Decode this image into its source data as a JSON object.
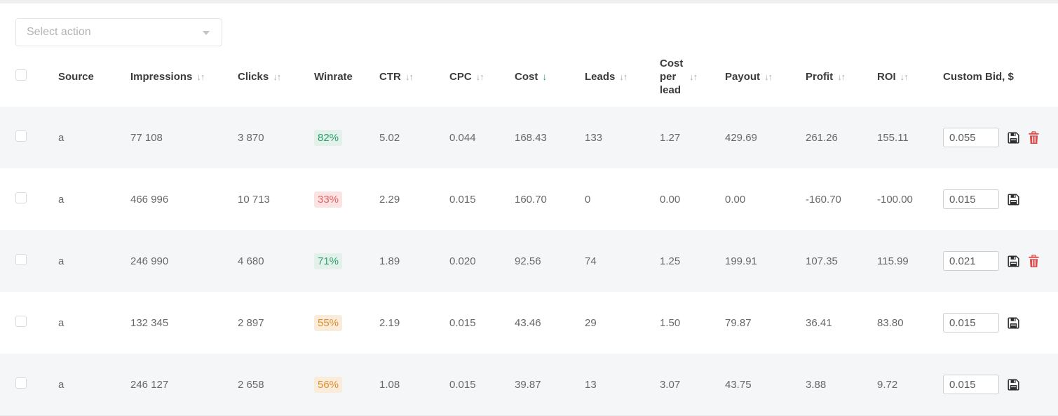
{
  "action_bar": {
    "select_action_placeholder": "Select action"
  },
  "table": {
    "select_all_checked": false,
    "columns": [
      {
        "id": "source",
        "label": "Source",
        "sort": "none"
      },
      {
        "id": "impressions",
        "label": "Impressions",
        "sort": "both"
      },
      {
        "id": "clicks",
        "label": "Clicks",
        "sort": "both"
      },
      {
        "id": "winrate",
        "label": "Winrate",
        "sort": "none"
      },
      {
        "id": "ctr",
        "label": "CTR",
        "sort": "both"
      },
      {
        "id": "cpc",
        "label": "CPC",
        "sort": "both"
      },
      {
        "id": "cost",
        "label": "Cost",
        "sort": "desc"
      },
      {
        "id": "leads",
        "label": "Leads",
        "sort": "both"
      },
      {
        "id": "cost_per_lead",
        "label": "Cost per lead",
        "sort": "both",
        "wrap": true
      },
      {
        "id": "payout",
        "label": "Payout",
        "sort": "both"
      },
      {
        "id": "profit",
        "label": "Profit",
        "sort": "both"
      },
      {
        "id": "roi",
        "label": "ROI",
        "sort": "both"
      },
      {
        "id": "custom_bid",
        "label": "Custom Bid, $",
        "sort": "none"
      }
    ],
    "rows": [
      {
        "checked": false,
        "source": "a",
        "impressions": "77 108",
        "clicks": "3 870",
        "winrate": "82%",
        "winrate_color": "green",
        "ctr": "5.02",
        "cpc": "0.044",
        "cost": "168.43",
        "leads": "133",
        "cost_per_lead": "1.27",
        "payout": "429.69",
        "profit": "261.26",
        "roi": "155.11",
        "custom_bid_value": "0.055",
        "can_delete": true
      },
      {
        "checked": false,
        "source": "a",
        "impressions": "466 996",
        "clicks": "10 713",
        "winrate": "33%",
        "winrate_color": "red",
        "ctr": "2.29",
        "cpc": "0.015",
        "cost": "160.70",
        "leads": "0",
        "cost_per_lead": "0.00",
        "payout": "0.00",
        "profit": "-160.70",
        "roi": "-100.00",
        "custom_bid_value": "0.015",
        "can_delete": false
      },
      {
        "checked": false,
        "source": "a",
        "impressions": "246 990",
        "clicks": "4 680",
        "winrate": "71%",
        "winrate_color": "green",
        "ctr": "1.89",
        "cpc": "0.020",
        "cost": "92.56",
        "leads": "74",
        "cost_per_lead": "1.25",
        "payout": "199.91",
        "profit": "107.35",
        "roi": "115.99",
        "custom_bid_value": "0.021",
        "can_delete": true
      },
      {
        "checked": false,
        "source": "a",
        "impressions": "132 345",
        "clicks": "2 897",
        "winrate": "55%",
        "winrate_color": "orange",
        "ctr": "2.19",
        "cpc": "0.015",
        "cost": "43.46",
        "leads": "29",
        "cost_per_lead": "1.50",
        "payout": "79.87",
        "profit": "36.41",
        "roi": "83.80",
        "custom_bid_value": "0.015",
        "can_delete": false
      },
      {
        "checked": false,
        "source": "a",
        "impressions": "246 127",
        "clicks": "2 658",
        "winrate": "56%",
        "winrate_color": "orange",
        "ctr": "1.08",
        "cpc": "0.015",
        "cost": "39.87",
        "leads": "13",
        "cost_per_lead": "3.07",
        "payout": "43.75",
        "profit": "3.88",
        "roi": "9.72",
        "custom_bid_value": "0.015",
        "can_delete": false
      }
    ]
  },
  "icons": {
    "select_action_chevron": "chevron-down-icon",
    "sort_inactive": "sort-arrows-icon",
    "sort_active": "arrow-down-icon",
    "save": "floppy-disk-icon",
    "delete": "trash-icon"
  },
  "colors": {
    "sort_active_arrow": "#21a471",
    "badge_green_bg": "#e3f1ea",
    "badge_green_text": "#2aa06e",
    "badge_red_bg": "#fbe3e3",
    "badge_red_text": "#ea6161",
    "badge_orange_bg": "#faecda",
    "badge_orange_text": "#de8e2e",
    "delete_icon": "#dd4b4b",
    "row_stripe": "#f5f6f7"
  }
}
